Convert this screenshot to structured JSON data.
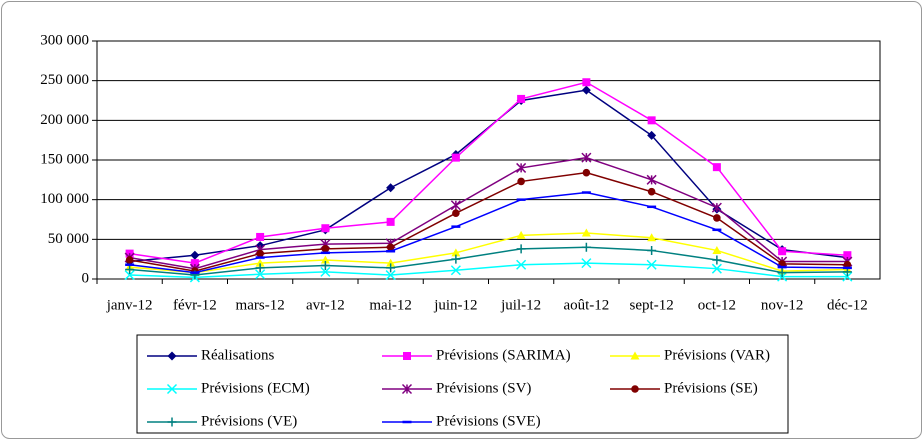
{
  "chart_data": {
    "type": "line",
    "categories": [
      "janv-12",
      "févr-12",
      "mars-12",
      "avr-12",
      "mai-12",
      "juin-12",
      "juil-12",
      "août-12",
      "sept-12",
      "oct-12",
      "nov-12",
      "déc-12"
    ],
    "ylim": [
      0,
      300000
    ],
    "yticks": [
      0,
      {
        "value": 50000,
        "label": "50 000"
      },
      {
        "value": 100000,
        "label": "100 000"
      },
      {
        "value": 150000,
        "label": "150 000"
      },
      {
        "value": 200000,
        "label": "200 000"
      },
      {
        "value": 250000,
        "label": "250 000"
      },
      {
        "value": 300000,
        "label": "300 000"
      }
    ],
    "grid": true,
    "legend": "bottom",
    "series": [
      {
        "name": "Réalisations",
        "color": "#000080",
        "marker": "diamond",
        "values": [
          22000,
          30000,
          42000,
          62000,
          115000,
          157000,
          225000,
          238000,
          181000,
          88000,
          37000,
          27000
        ]
      },
      {
        "name": "Prévisions (SARIMA)",
        "color": "#ff00ff",
        "marker": "square",
        "values": [
          32000,
          20000,
          53000,
          64000,
          72000,
          153000,
          227000,
          248000,
          200000,
          141000,
          35000,
          30000
        ]
      },
      {
        "name": "Prévisions (VAR)",
        "color": "#ffff00",
        "marker": "triangle",
        "values": [
          15000,
          8000,
          20000,
          24000,
          20000,
          33000,
          55000,
          58000,
          52000,
          36000,
          10000,
          12000
        ]
      },
      {
        "name": "Prévisions (ECM)",
        "color": "#00ffff",
        "marker": "x",
        "values": [
          5000,
          2000,
          6000,
          9000,
          5000,
          11000,
          18000,
          20000,
          18000,
          13000,
          3000,
          3000
        ]
      },
      {
        "name": "Prévisions (SV)",
        "color": "#800080",
        "marker": "star",
        "values": [
          27000,
          13000,
          37000,
          44000,
          45000,
          93000,
          140000,
          153000,
          125000,
          90000,
          22000,
          22000
        ]
      },
      {
        "name": "Prévisions (SE)",
        "color": "#800000",
        "marker": "circle",
        "values": [
          24000,
          10000,
          32000,
          38000,
          40000,
          83000,
          123000,
          134000,
          110000,
          77000,
          19000,
          18000
        ]
      },
      {
        "name": "Prévisions (VE)",
        "color": "#008080",
        "marker": "plus",
        "values": [
          12000,
          5000,
          14000,
          17000,
          14000,
          25000,
          38000,
          40000,
          36000,
          24000,
          8000,
          9000
        ]
      },
      {
        "name": "Prévisions (SVE)",
        "color": "#0000ff",
        "marker": "dash",
        "values": [
          18000,
          8000,
          27000,
          33000,
          35000,
          66000,
          100000,
          109000,
          91000,
          62000,
          15000,
          14000
        ]
      }
    ]
  }
}
